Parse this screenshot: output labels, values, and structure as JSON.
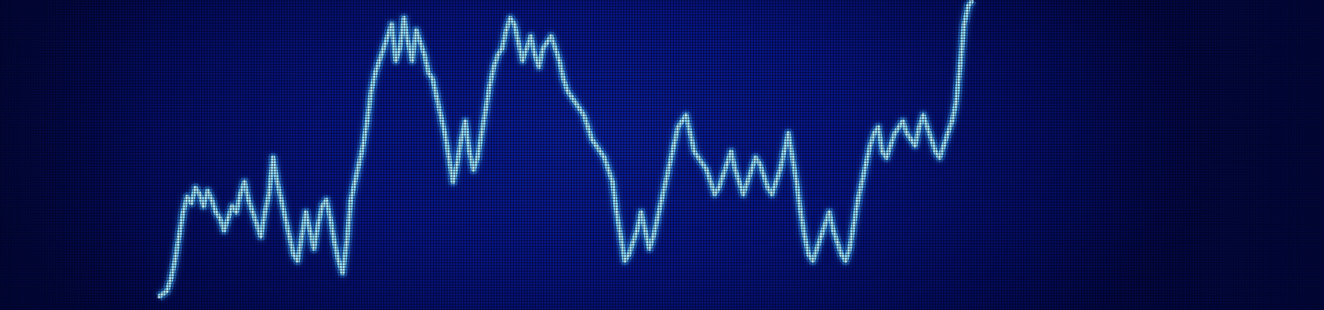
{
  "photo": {
    "subject": "led-stock-ticker-screen",
    "colors": {
      "background": "#061584",
      "line": "#7fd8ff",
      "line_glow": "#3fa8ff",
      "line_highlight": "#c8f0ff"
    }
  },
  "chart_data": {
    "type": "line",
    "title": "",
    "xlabel": "",
    "ylabel": "",
    "xlim": [
      0,
      200
    ],
    "ylim": [
      0,
      100
    ],
    "grid": false,
    "legend": "none",
    "series": [
      {
        "values": [
          2,
          3,
          4,
          8,
          14,
          22,
          30,
          35,
          33,
          38,
          36,
          32,
          37,
          34,
          30,
          28,
          24,
          28,
          32,
          30,
          36,
          40,
          34,
          30,
          26,
          22,
          30,
          36,
          48,
          40,
          34,
          28,
          22,
          16,
          14,
          22,
          30,
          24,
          18,
          26,
          32,
          34,
          28,
          20,
          14,
          10,
          20,
          34,
          40,
          46,
          52,
          60,
          70,
          76,
          80,
          84,
          88,
          92,
          80,
          84,
          94,
          86,
          80,
          90,
          86,
          82,
          76,
          74,
          68,
          62,
          56,
          48,
          40,
          46,
          54,
          60,
          50,
          44,
          48,
          56,
          64,
          72,
          78,
          82,
          84,
          90,
          94,
          92,
          86,
          80,
          84,
          88,
          82,
          78,
          84,
          86,
          88,
          84,
          80,
          74,
          70,
          68,
          66,
          64,
          62,
          58,
          54,
          52,
          50,
          48,
          44,
          40,
          30,
          22,
          14,
          16,
          20,
          24,
          30,
          24,
          18,
          22,
          28,
          34,
          40,
          46,
          52,
          58,
          60,
          62,
          56,
          50,
          48,
          46,
          44,
          40,
          36,
          38,
          42,
          46,
          50,
          44,
          40,
          36,
          40,
          44,
          48,
          46,
          42,
          38,
          36,
          40,
          44,
          50,
          56,
          48,
          40,
          30,
          22,
          16,
          14,
          18,
          22,
          26,
          30,
          24,
          20,
          16,
          14,
          18,
          26,
          34,
          40,
          46,
          52,
          56,
          58,
          50,
          48,
          52,
          56,
          58,
          60,
          56,
          54,
          52,
          58,
          62,
          58,
          54,
          50,
          48,
          52,
          56,
          60,
          66,
          78,
          92,
          98,
          100
        ]
      }
    ]
  }
}
